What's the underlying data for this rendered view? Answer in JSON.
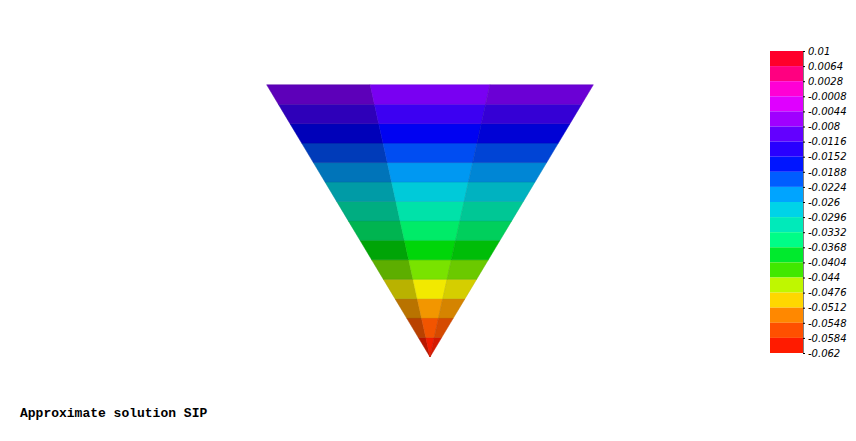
{
  "chart_data": {
    "type": "surface",
    "title": "Approximate solution SIP",
    "tick_labels": false,
    "levels": [
      -0.06,
      -0.056,
      -0.052,
      -0.048,
      -0.044,
      -0.04,
      -0.036,
      -0.032,
      -0.028,
      -0.024,
      -0.02,
      -0.016,
      -0.012,
      -0.008
    ],
    "colorbar_range": [
      0.01,
      -0.062
    ],
    "colorbar_ticks": [
      0.01,
      0.0064,
      0.0028,
      -0.0008,
      -0.0044,
      -0.008,
      -0.0116,
      -0.0152,
      -0.0188,
      -0.0224,
      -0.026,
      -0.0296,
      -0.0332,
      -0.0368,
      -0.0404,
      -0.044,
      -0.0476,
      -0.0512,
      -0.0548,
      -0.0584,
      -0.062
    ]
  }
}
